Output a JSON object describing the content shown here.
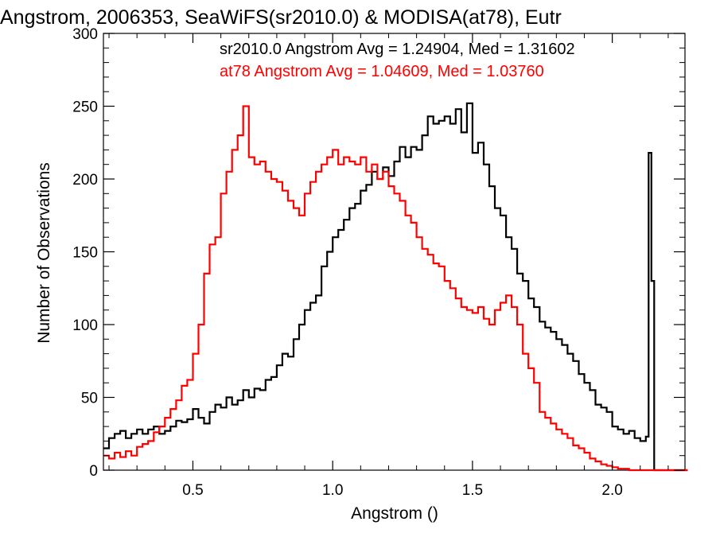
{
  "chart_data": {
    "type": "histogram",
    "title": "Angstrom, 2006353, SeaWiFS(sr2010.0) & MODISA(at78), Eutr",
    "xlabel": "Angstrom ()",
    "ylabel": "Number of Observations",
    "xlim": [
      0.18,
      2.26
    ],
    "ylim": [
      0,
      300
    ],
    "x_ticks": [
      0.5,
      1.0,
      1.5,
      2.0
    ],
    "x_tick_labels": [
      "0.5",
      "1.0",
      "1.5",
      "2.0"
    ],
    "y_ticks": [
      0,
      50,
      100,
      150,
      200,
      250,
      300
    ],
    "y_tick_labels": [
      "0",
      "50",
      "100",
      "150",
      "200",
      "250",
      "300"
    ],
    "grid": false,
    "legend_position": "top-right",
    "legend": [
      "sr2010.0 Angstrom Avg = 1.24904, Med = 1.31602",
      "at78 Angstrom Avg = 1.04609, Med = 1.03760"
    ],
    "series": [
      {
        "color": "#000000",
        "bin_width": 0.01,
        "x": [
          0.18,
          0.2,
          0.22,
          0.24,
          0.26,
          0.28,
          0.3,
          0.32,
          0.34,
          0.36,
          0.38,
          0.4,
          0.42,
          0.44,
          0.46,
          0.48,
          0.5,
          0.52,
          0.54,
          0.56,
          0.58,
          0.6,
          0.62,
          0.64,
          0.66,
          0.68,
          0.7,
          0.72,
          0.74,
          0.76,
          0.78,
          0.8,
          0.82,
          0.84,
          0.86,
          0.88,
          0.9,
          0.92,
          0.94,
          0.96,
          0.98,
          1.0,
          1.02,
          1.04,
          1.06,
          1.08,
          1.1,
          1.12,
          1.14,
          1.16,
          1.18,
          1.2,
          1.22,
          1.24,
          1.26,
          1.28,
          1.3,
          1.32,
          1.34,
          1.36,
          1.38,
          1.4,
          1.42,
          1.44,
          1.46,
          1.48,
          1.5,
          1.52,
          1.54,
          1.56,
          1.58,
          1.6,
          1.62,
          1.64,
          1.66,
          1.68,
          1.7,
          1.72,
          1.74,
          1.76,
          1.78,
          1.8,
          1.82,
          1.84,
          1.86,
          1.88,
          1.9,
          1.92,
          1.94,
          1.96,
          1.98,
          2.0,
          2.02,
          2.04,
          2.06,
          2.08,
          2.1,
          2.12,
          2.13,
          2.14,
          2.15,
          2.16,
          2.18,
          2.2,
          2.22,
          2.24,
          2.26
        ],
        "values": [
          15,
          22,
          25,
          27,
          22,
          25,
          28,
          25,
          28,
          30,
          25,
          27,
          30,
          34,
          33,
          35,
          42,
          36,
          32,
          40,
          45,
          43,
          50,
          45,
          48,
          55,
          50,
          56,
          55,
          62,
          64,
          72,
          80,
          78,
          90,
          100,
          110,
          115,
          120,
          140,
          150,
          160,
          165,
          172,
          180,
          183,
          192,
          196,
          205,
          200,
          208,
          202,
          212,
          222,
          215,
          222,
          220,
          230,
          243,
          238,
          240,
          243,
          238,
          248,
          232,
          252,
          218,
          225,
          210,
          195,
          180,
          175,
          160,
          152,
          135,
          130,
          118,
          112,
          102,
          98,
          95,
          90,
          86,
          80,
          75,
          66,
          60,
          55,
          45,
          43,
          40,
          30,
          28,
          25,
          27,
          22,
          20,
          23,
          218,
          130,
          0,
          0,
          0,
          0,
          0,
          0,
          0
        ]
      },
      {
        "color": "#ff0000",
        "bin_width": 0.01,
        "x": [
          0.18,
          0.2,
          0.22,
          0.24,
          0.26,
          0.28,
          0.3,
          0.32,
          0.34,
          0.36,
          0.38,
          0.4,
          0.42,
          0.44,
          0.46,
          0.48,
          0.5,
          0.52,
          0.54,
          0.56,
          0.58,
          0.6,
          0.62,
          0.64,
          0.66,
          0.68,
          0.7,
          0.72,
          0.74,
          0.76,
          0.78,
          0.8,
          0.82,
          0.84,
          0.86,
          0.88,
          0.9,
          0.92,
          0.94,
          0.96,
          0.98,
          1.0,
          1.02,
          1.04,
          1.06,
          1.08,
          1.1,
          1.12,
          1.14,
          1.16,
          1.18,
          1.2,
          1.22,
          1.24,
          1.26,
          1.28,
          1.3,
          1.32,
          1.34,
          1.36,
          1.38,
          1.4,
          1.42,
          1.44,
          1.46,
          1.48,
          1.5,
          1.52,
          1.54,
          1.56,
          1.58,
          1.6,
          1.62,
          1.64,
          1.66,
          1.68,
          1.7,
          1.72,
          1.74,
          1.76,
          1.78,
          1.8,
          1.82,
          1.84,
          1.86,
          1.88,
          1.9,
          1.92,
          1.94,
          1.96,
          1.98,
          2.0,
          2.02,
          2.04,
          2.06,
          2.08,
          2.1,
          2.12,
          2.14,
          2.16,
          2.18,
          2.2,
          2.22,
          2.24,
          2.26
        ],
        "values": [
          10,
          8,
          12,
          9,
          13,
          10,
          16,
          18,
          20,
          26,
          30,
          36,
          42,
          48,
          58,
          62,
          80,
          100,
          135,
          155,
          160,
          190,
          205,
          220,
          230,
          250,
          215,
          210,
          212,
          205,
          200,
          198,
          192,
          185,
          180,
          175,
          190,
          198,
          205,
          210,
          215,
          220,
          210,
          215,
          212,
          210,
          215,
          205,
          210,
          200,
          205,
          195,
          190,
          185,
          175,
          170,
          160,
          152,
          148,
          142,
          140,
          130,
          125,
          118,
          112,
          110,
          108,
          112,
          104,
          100,
          110,
          115,
          120,
          112,
          100,
          80,
          70,
          60,
          40,
          36,
          32,
          28,
          25,
          22,
          17,
          15,
          12,
          8,
          6,
          4,
          3,
          2,
          1,
          1,
          0,
          0,
          0,
          0,
          0,
          0,
          0,
          0,
          0,
          0,
          0
        ]
      }
    ]
  }
}
